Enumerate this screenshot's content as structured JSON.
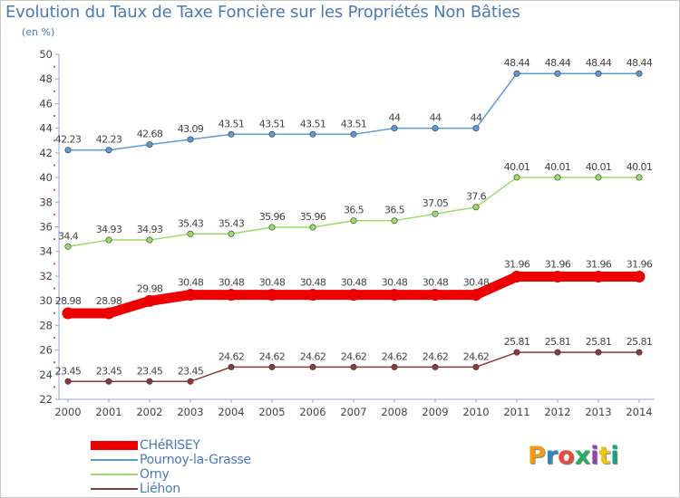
{
  "title": "Evolution du Taux de Taxe Foncière sur les Propriétés Non Bâties",
  "unit_label": "(en %)",
  "logo_text": "Proxiti",
  "logo_colors": [
    "#f39c12",
    "#2e86c1",
    "#e74c3c",
    "#27ae60",
    "#8e44ad",
    "#f1c40f",
    "#16a085"
  ],
  "chart_data": {
    "type": "line",
    "title": "Evolution du Taux de Taxe Foncière sur les Propriétés Non Bâties",
    "ylabel": "(en %)",
    "xlabel": "",
    "ylim": [
      22,
      50
    ],
    "yticks": [
      22,
      24,
      26,
      28,
      30,
      32,
      34,
      36,
      38,
      40,
      42,
      44,
      46,
      48,
      50
    ],
    "grid": false,
    "legend_position": "bottom-left",
    "categories": [
      "2000",
      "2001",
      "2002",
      "2003",
      "2004",
      "2005",
      "2006",
      "2007",
      "2008",
      "2009",
      "2010",
      "2011",
      "2012",
      "2013",
      "2014"
    ],
    "series": [
      {
        "name": "CHéRISEY",
        "color": "#ee0000",
        "emphasis": true,
        "values": [
          28.98,
          28.98,
          29.98,
          30.48,
          30.48,
          30.48,
          30.48,
          30.48,
          30.48,
          30.48,
          30.48,
          31.96,
          31.96,
          31.96,
          31.96
        ],
        "labels": [
          "28.98",
          "28.98",
          "29.98",
          "30.48",
          "30.48",
          "30.48",
          "30.48",
          "30.48",
          "30.48",
          "30.48",
          "30.48",
          "31.96",
          "31.96",
          "31.96",
          "31.96"
        ]
      },
      {
        "name": "Pournoy-la-Grasse",
        "color": "#5b9bd5",
        "emphasis": false,
        "values": [
          42.23,
          42.23,
          42.68,
          43.09,
          43.51,
          43.51,
          43.51,
          43.51,
          44,
          44,
          44,
          48.44,
          48.44,
          48.44,
          48.44
        ],
        "labels": [
          "42.23",
          "42.23",
          "42.68",
          "43.09",
          "43.51",
          "43.51",
          "43.51",
          "43.51",
          "44",
          "44",
          "44",
          "48.44",
          "48.44",
          "48.44",
          "48.44"
        ]
      },
      {
        "name": "Orny",
        "color": "#99dd66",
        "emphasis": false,
        "values": [
          34.4,
          34.93,
          34.93,
          35.43,
          35.43,
          35.96,
          35.96,
          36.5,
          36.5,
          37.05,
          37.6,
          40.01,
          40.01,
          40.01,
          40.01
        ],
        "labels": [
          "34.4",
          "34.93",
          "34.93",
          "35.43",
          "35.43",
          "35.96",
          "35.96",
          "36.5",
          "36.5",
          "37.05",
          "37.6",
          "40.01",
          "40.01",
          "40.01",
          "40.01"
        ]
      },
      {
        "name": "Liéhon",
        "color": "#8b3a3a",
        "emphasis": false,
        "values": [
          23.45,
          23.45,
          23.45,
          23.45,
          24.62,
          24.62,
          24.62,
          24.62,
          24.62,
          24.62,
          24.62,
          25.81,
          25.81,
          25.81,
          25.81
        ],
        "labels": [
          "23.45",
          "23.45",
          "23.45",
          "23.45",
          "24.62",
          "24.62",
          "24.62",
          "24.62",
          "24.62",
          "24.62",
          "24.62",
          "25.81",
          "25.81",
          "25.81",
          "25.81"
        ]
      }
    ]
  }
}
